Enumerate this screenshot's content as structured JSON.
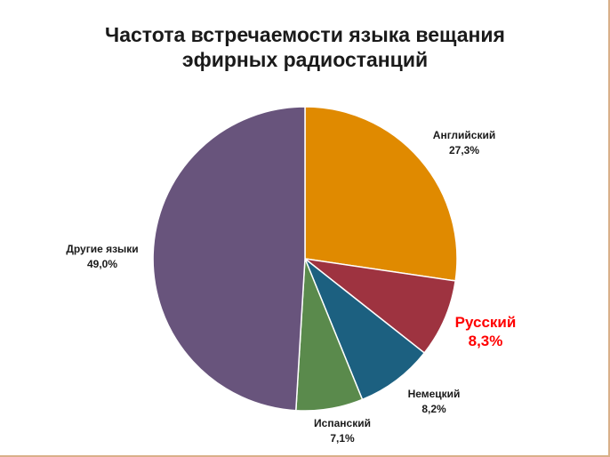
{
  "chart_data": {
    "type": "pie",
    "title_lines": [
      "Частота встречаемости языка вещания",
      "эфирных радиостанций"
    ],
    "start_angle_deg": 0,
    "direction": "clockwise",
    "slices": [
      {
        "label": "Английский",
        "value": 27.3,
        "value_text": "27,3%",
        "color": "#e08a00",
        "highlight": false
      },
      {
        "label": "Русский",
        "value": 8.3,
        "value_text": "8,3%",
        "color": "#9e3340",
        "highlight": true
      },
      {
        "label": "Немецкий",
        "value": 8.2,
        "value_text": "8,2%",
        "color": "#1c6080",
        "highlight": false
      },
      {
        "label": "Испанский",
        "value": 7.1,
        "value_text": "7,1%",
        "color": "#5a8a4c",
        "highlight": false
      },
      {
        "label": "Другие языки",
        "value": 49.0,
        "value_text": "49,0%",
        "color": "#68547c",
        "highlight": false
      }
    ],
    "highlight_color": "#ff0000",
    "legend": "none"
  }
}
